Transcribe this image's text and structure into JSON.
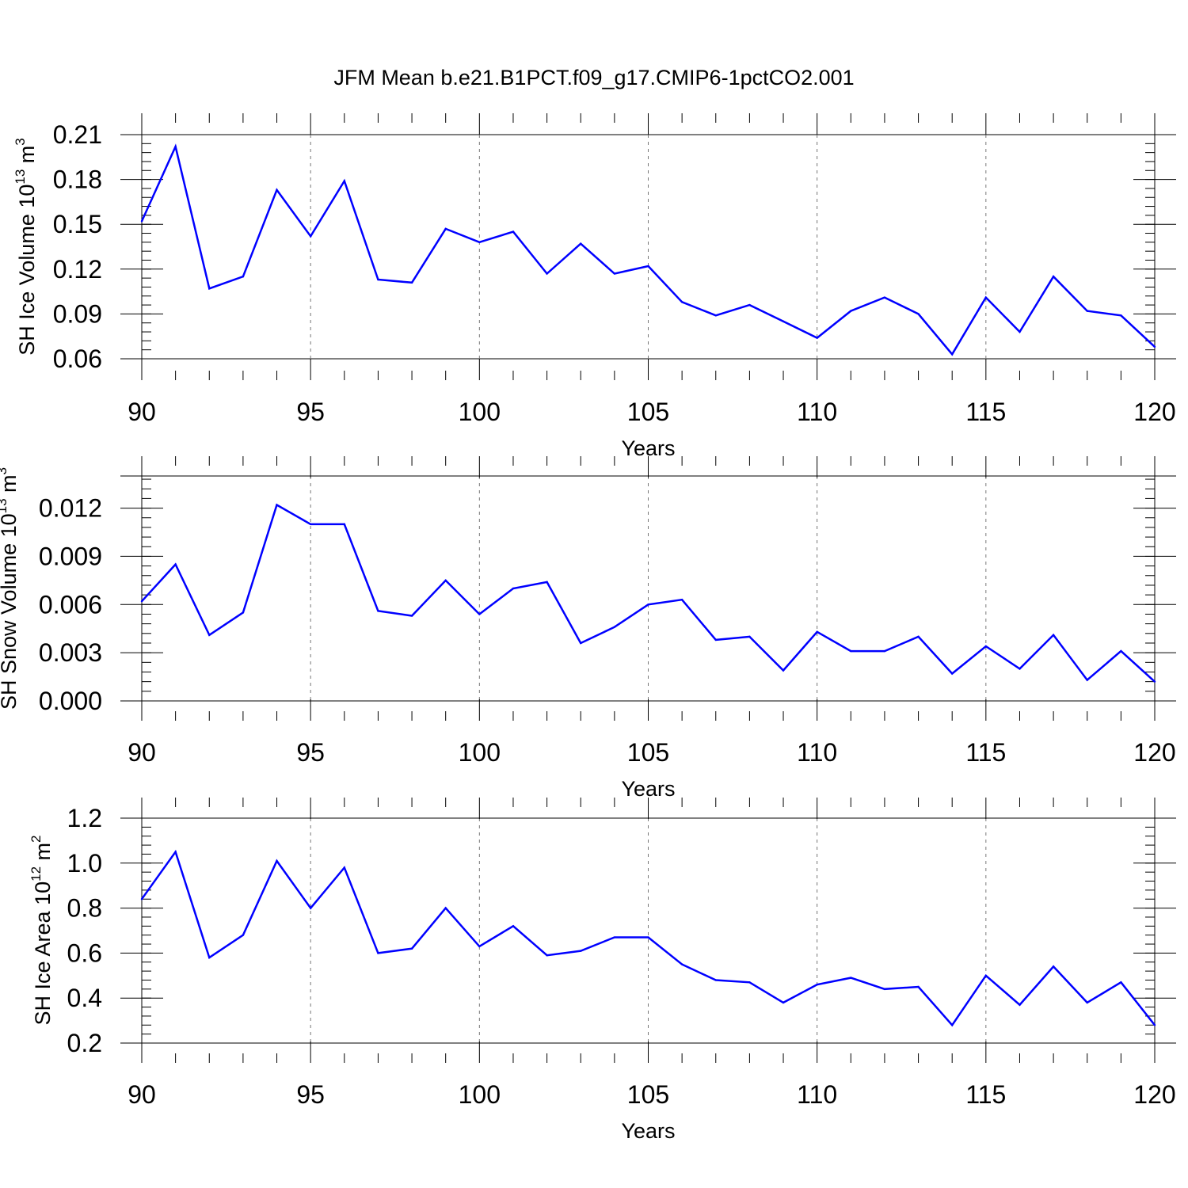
{
  "title": "JFM Mean b.e21.B1PCT.f09_g17.CMIP6-1pctCO2.001",
  "chart_data": [
    {
      "type": "line",
      "ylabel": {
        "main": "SH Ice Volume 10",
        "exp": "13",
        "unit": " m",
        "unit_exp": "3"
      },
      "xlabel": "Years",
      "xlim": [
        90,
        120
      ],
      "ylim": [
        0.06,
        0.21
      ],
      "x_ticks": [
        90,
        95,
        100,
        105,
        110,
        115,
        120
      ],
      "x_tick_labels": [
        "90",
        "95",
        "100",
        "105",
        "110",
        "115",
        "120"
      ],
      "y_ticks": [
        0.06,
        0.09,
        0.12,
        0.15,
        0.18,
        0.21
      ],
      "y_tick_labels": [
        "0.06",
        "0.09",
        "0.12",
        "0.15",
        "0.18",
        "0.21"
      ],
      "vertical_dashed_gridlines": [
        95,
        100,
        105,
        110,
        115
      ],
      "line_color": "#0000ff",
      "x": [
        90,
        91,
        92,
        93,
        94,
        95,
        96,
        97,
        98,
        99,
        100,
        101,
        102,
        103,
        104,
        105,
        106,
        107,
        108,
        109,
        110,
        111,
        112,
        113,
        114,
        115,
        116,
        117,
        118,
        119,
        120
      ],
      "y": [
        0.152,
        0.202,
        0.107,
        0.115,
        0.173,
        0.142,
        0.179,
        0.113,
        0.111,
        0.147,
        0.138,
        0.145,
        0.117,
        0.137,
        0.117,
        0.122,
        0.098,
        0.089,
        0.096,
        0.085,
        0.074,
        0.092,
        0.101,
        0.09,
        0.063,
        0.101,
        0.078,
        0.115,
        0.092,
        0.089,
        0.068
      ]
    },
    {
      "type": "line",
      "ylabel": {
        "main": "SH Snow Volume 10",
        "exp": "13",
        "unit": " m",
        "unit_exp": "3"
      },
      "xlabel": "Years",
      "xlim": [
        90,
        120
      ],
      "ylim": [
        0.0,
        0.014
      ],
      "x_ticks": [
        90,
        95,
        100,
        105,
        110,
        115,
        120
      ],
      "x_tick_labels": [
        "90",
        "95",
        "100",
        "105",
        "110",
        "115",
        "120"
      ],
      "y_ticks": [
        0.0,
        0.003,
        0.006,
        0.009,
        0.012
      ],
      "y_tick_labels": [
        "0.000",
        "0.003",
        "0.006",
        "0.009",
        "0.012"
      ],
      "vertical_dashed_gridlines": [
        95,
        100,
        105,
        110,
        115
      ],
      "line_color": "#0000ff",
      "x": [
        90,
        91,
        92,
        93,
        94,
        95,
        96,
        97,
        98,
        99,
        100,
        101,
        102,
        103,
        104,
        105,
        106,
        107,
        108,
        109,
        110,
        111,
        112,
        113,
        114,
        115,
        116,
        117,
        118,
        119,
        120
      ],
      "y": [
        0.0062,
        0.0085,
        0.0041,
        0.0055,
        0.0122,
        0.011,
        0.011,
        0.0056,
        0.0053,
        0.0075,
        0.0054,
        0.007,
        0.0074,
        0.0036,
        0.0046,
        0.006,
        0.0063,
        0.0038,
        0.004,
        0.0019,
        0.0043,
        0.0031,
        0.0031,
        0.004,
        0.0017,
        0.0034,
        0.002,
        0.0041,
        0.0013,
        0.0031,
        0.0012
      ]
    },
    {
      "type": "line",
      "ylabel": {
        "main": "SH Ice Area 10",
        "exp": "12",
        "unit": " m",
        "unit_exp": "2"
      },
      "xlabel": "Years",
      "xlim": [
        90,
        120
      ],
      "ylim": [
        0.2,
        1.2
      ],
      "x_ticks": [
        90,
        95,
        100,
        105,
        110,
        115,
        120
      ],
      "x_tick_labels": [
        "90",
        "95",
        "100",
        "105",
        "110",
        "115",
        "120"
      ],
      "y_ticks": [
        0.2,
        0.4,
        0.6,
        0.8,
        1.0,
        1.2
      ],
      "y_tick_labels": [
        "0.2",
        "0.4",
        "0.6",
        "0.8",
        "1.0",
        "1.2"
      ],
      "vertical_dashed_gridlines": [
        95,
        100,
        105,
        110,
        115
      ],
      "line_color": "#0000ff",
      "x": [
        90,
        91,
        92,
        93,
        94,
        95,
        96,
        97,
        98,
        99,
        100,
        101,
        102,
        103,
        104,
        105,
        106,
        107,
        108,
        109,
        110,
        111,
        112,
        113,
        114,
        115,
        116,
        117,
        118,
        119,
        120
      ],
      "y": [
        0.84,
        1.05,
        0.58,
        0.68,
        1.01,
        0.8,
        0.98,
        0.6,
        0.62,
        0.8,
        0.63,
        0.72,
        0.59,
        0.61,
        0.67,
        0.67,
        0.55,
        0.48,
        0.47,
        0.38,
        0.46,
        0.49,
        0.44,
        0.45,
        0.28,
        0.5,
        0.37,
        0.54,
        0.38,
        0.47,
        0.28
      ]
    }
  ]
}
